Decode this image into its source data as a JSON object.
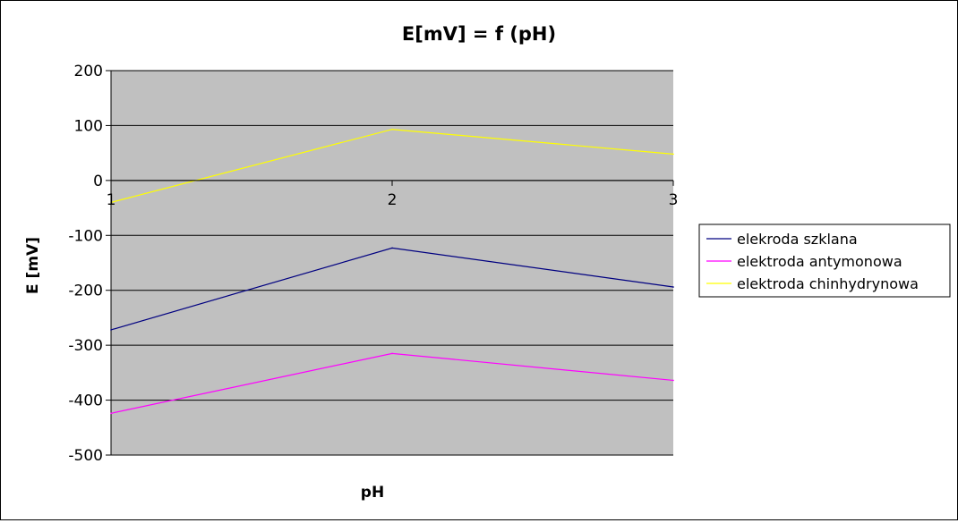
{
  "chart_data": {
    "type": "line",
    "title": "E[mV] = f (pH)",
    "xlabel": "pH",
    "ylabel": "E [mV]",
    "categories": [
      "1",
      "2",
      "3"
    ],
    "x": [
      1,
      2,
      3
    ],
    "ylim": [
      -500,
      200
    ],
    "yticks": [
      "200",
      "100",
      "0",
      "-100",
      "-200",
      "-300",
      "-400",
      "-500"
    ],
    "grid": true,
    "legend_position": "right",
    "plot_background": "#c0c0c0",
    "series": [
      {
        "name": "elekroda szklana",
        "values": [
          -272,
          -123,
          -194
        ],
        "color": "#000080"
      },
      {
        "name": "elektroda antymonowa",
        "values": [
          -424,
          -315,
          -364
        ],
        "color": "#ff00ff"
      },
      {
        "name": "elektroda chinhydrynowa",
        "values": [
          -40,
          93,
          48
        ],
        "color": "#ffff00"
      }
    ]
  }
}
